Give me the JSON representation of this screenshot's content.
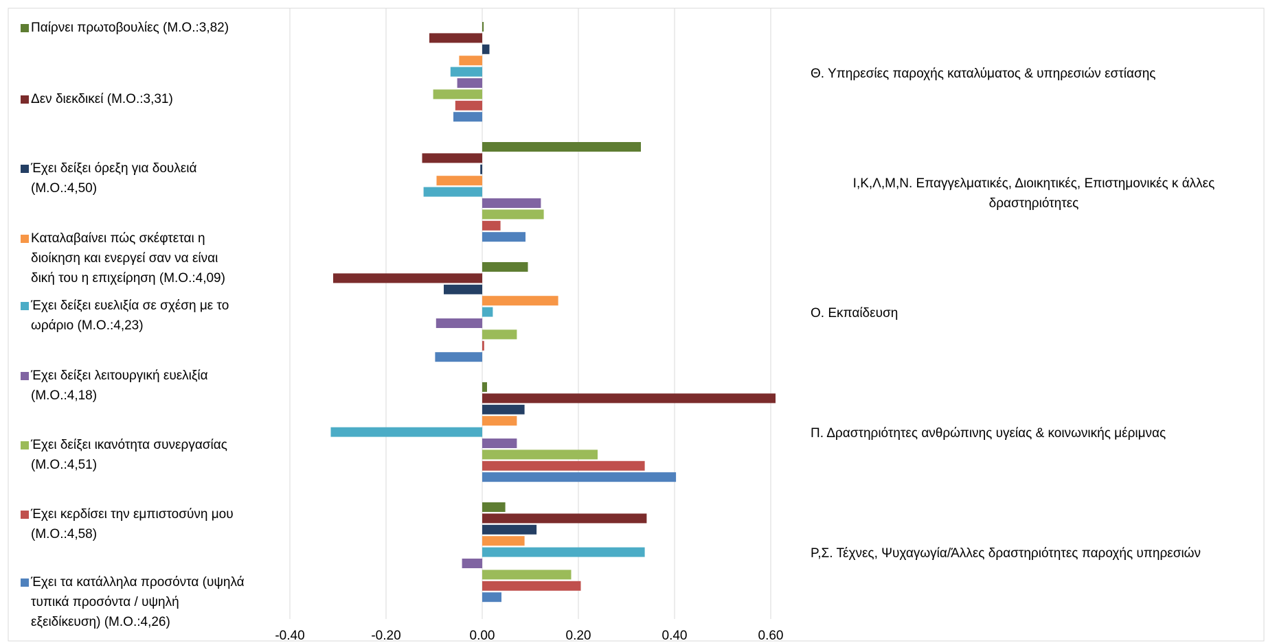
{
  "chart_data": {
    "type": "bar",
    "orientation": "horizontal",
    "xlim": [
      -0.4,
      0.6
    ],
    "x_ticks": [
      "-0.40",
      "-0.20",
      "0.00",
      "0.20",
      "0.40",
      "0.60"
    ],
    "x_tick_values": [
      -0.4,
      -0.2,
      0.0,
      0.2,
      0.4,
      0.6
    ],
    "grid": true,
    "legend_position": "left",
    "categories": [
      "Θ. Υπηρεσίες παροχής καταλύματος & υπηρεσιών εστίασης",
      "Ι,Κ,Λ,Μ,Ν. Επαγγελματικές, Διοικητικές, Επιστημονικές κ άλλες δραστηριότητες",
      "Ο. Εκπαίδευση",
      "Π. Δραστηριότητες ανθρώπινης υγείας & κοινωνικής μέριμνας",
      "Ρ,Σ. Τέχνες, Ψυχαγωγία/Άλλες δραστηριότητες παροχής υπηρεσιών"
    ],
    "category_label_lines": [
      [
        "Θ. Υπηρεσίες παροχής καταλύματος & υπηρεσιών εστίασης"
      ],
      [
        "Ι,Κ,Λ,Μ,Ν. Επαγγελματικές, Διοικητικές, Επιστημονικές κ άλλες",
        "δραστηριότητες"
      ],
      [
        "Ο. Εκπαίδευση"
      ],
      [
        "Π. Δραστηριότητες ανθρώπινης υγείας & κοινωνικής μέριμνας"
      ],
      [
        "Ρ,Σ. Τέχνες, Ψυχαγωγία/Άλλες δραστηριότητες παροχής υπηρεσιών"
      ]
    ],
    "series": [
      {
        "name": "Παίρνει πρωτοβουλίες (Μ.Ο.:3,82)",
        "legend_lines": [
          "Παίρνει πρωτοβουλίες (Μ.Ο.:3,82)"
        ],
        "color": "#5E7D32",
        "values": [
          0.003,
          0.33,
          0.095,
          0.01,
          0.048
        ]
      },
      {
        "name": "Δεν διεκδικεί (Μ.Ο.:3,31)",
        "legend_lines": [
          "Δεν διεκδικεί (Μ.Ο.:3,31)"
        ],
        "color": "#7B2C2C",
        "values": [
          -0.11,
          -0.125,
          -0.31,
          0.61,
          0.342
        ]
      },
      {
        "name": "Έχει δείξει όρεξη για δουλειά (Μ.Ο.:4,50)",
        "legend_lines": [
          "Έχει δείξει όρεξη για δουλειά",
          "(Μ.Ο.:4,50)"
        ],
        "color": "#243F64",
        "values": [
          0.015,
          -0.004,
          -0.08,
          0.088,
          0.113
        ]
      },
      {
        "name": "Καταλαβαίνει πώς σκέφτεται η διοίκηση και ενεργεί σαν να είναι δική του η επιχείρηση (Μ.Ο.:4,09)",
        "legend_lines": [
          "Καταλαβαίνει πώς σκέφτεται η",
          "διοίκηση και ενεργεί σαν να είναι",
          "δική του η επιχείρηση (Μ.Ο.:4,09)"
        ],
        "color": "#F79646",
        "values": [
          -0.048,
          -0.095,
          0.158,
          0.072,
          0.088
        ]
      },
      {
        "name": "Έχει δείξει ευελιξία σε σχέση με το ωράριο (Μ.Ο.:4,23)",
        "legend_lines": [
          "Έχει δείξει ευελιξία σε σχέση με το",
          "ωράριο (Μ.Ο.:4,23)"
        ],
        "color": "#4BACC6",
        "values": [
          -0.066,
          -0.122,
          0.022,
          -0.315,
          0.338
        ]
      },
      {
        "name": "Έχει δείξει λειτουργική ευελιξία (Μ.Ο.:4,18)",
        "legend_lines": [
          "Έχει δείξει λειτουργική ευελιξία",
          "(Μ.Ο.:4,18)"
        ],
        "color": "#8064A2",
        "values": [
          -0.052,
          0.122,
          -0.096,
          0.072,
          -0.042
        ]
      },
      {
        "name": "Έχει δείξει ικανότητα συνεργασίας (Μ.Ο.:4,51)",
        "legend_lines": [
          "Έχει δείξει ικανότητα συνεργασίας",
          "(Μ.Ο.:4,51)"
        ],
        "color": "#9BBB59",
        "values": [
          -0.102,
          0.128,
          0.072,
          0.24,
          0.185
        ]
      },
      {
        "name": "Έχει κερδίσει την εμπιστοσύνη μου (Μ.Ο.:4,58)",
        "legend_lines": [
          "Έχει κερδίσει την εμπιστοσύνη μου",
          "(Μ.Ο.:4,58)"
        ],
        "color": "#C0504D",
        "values": [
          -0.056,
          0.038,
          0.004,
          0.338,
          0.205
        ]
      },
      {
        "name": "Έχει τα κατάλληλα προσόντα (υψηλά τυπικά προσόντα / υψηλή εξειδίκευση) (Μ.Ο.:4,26)",
        "legend_lines": [
          "Έχει τα κατάλληλα  προσόντα (υψηλά",
          "τυπικά προσόντα / υψηλή",
          "εξειδίκευση) (Μ.Ο.:4,26)"
        ],
        "color": "#4F81BD",
        "values": [
          -0.06,
          0.09,
          -0.098,
          0.403,
          0.04
        ]
      }
    ]
  }
}
